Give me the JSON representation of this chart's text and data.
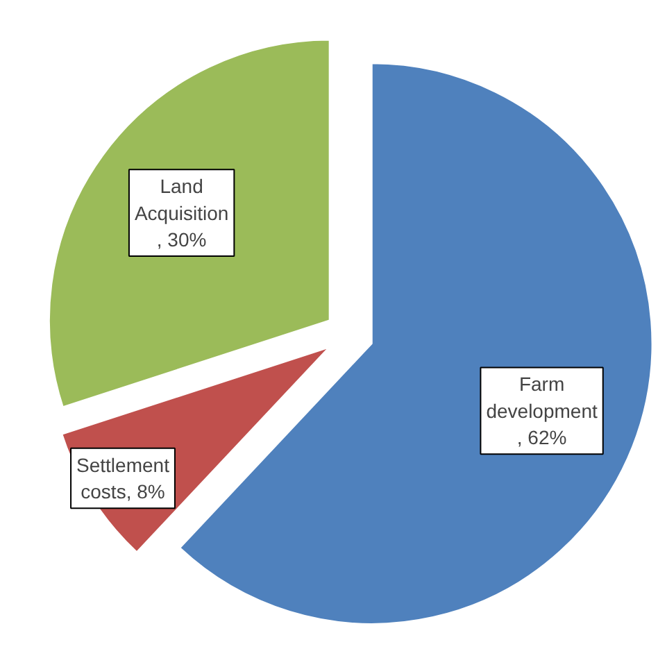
{
  "chart_data": {
    "type": "pie",
    "categories": [
      "Farm development",
      "Settlement costs",
      "Land Acquisition"
    ],
    "values": [
      62,
      8,
      30
    ],
    "colors": [
      "#4f81bd",
      "#c0504d",
      "#9bbb59"
    ],
    "value_labels": [
      ", 62%",
      ", 8%",
      ", 30%"
    ]
  }
}
